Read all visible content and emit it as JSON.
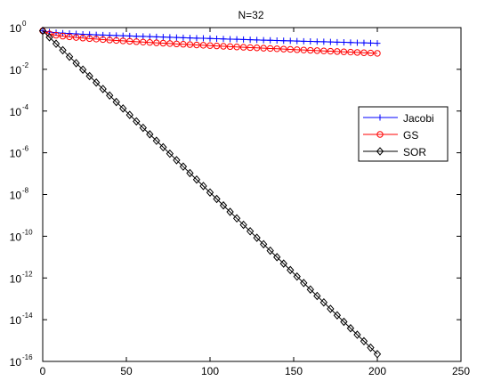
{
  "chart_data": {
    "type": "line",
    "title": "N=32",
    "xlabel": "",
    "ylabel": "",
    "xlim": [
      0,
      250
    ],
    "ylim": [
      1e-16,
      1
    ],
    "yscale": "log",
    "grid": false,
    "legend_position": "right",
    "x_ticks": [
      "0",
      "50",
      "100",
      "150",
      "200",
      "250"
    ],
    "y_ticks": [
      {
        "base": "10",
        "exp": "0",
        "value": 1
      },
      {
        "base": "10",
        "exp": "-2",
        "value": 0.01
      },
      {
        "base": "10",
        "exp": "-4",
        "value": 0.0001
      },
      {
        "base": "10",
        "exp": "-6",
        "value": 1e-06
      },
      {
        "base": "10",
        "exp": "-8",
        "value": 1e-08
      },
      {
        "base": "10",
        "exp": "-10",
        "value": 1e-10
      },
      {
        "base": "10",
        "exp": "-12",
        "value": 1e-12
      },
      {
        "base": "10",
        "exp": "-14",
        "value": 1e-14
      },
      {
        "base": "10",
        "exp": "-16",
        "value": 1e-16
      }
    ],
    "x": [
      0,
      4,
      8,
      12,
      16,
      20,
      24,
      28,
      32,
      36,
      40,
      44,
      48,
      52,
      56,
      60,
      64,
      68,
      72,
      76,
      80,
      84,
      88,
      92,
      96,
      100,
      104,
      108,
      112,
      116,
      120,
      124,
      128,
      132,
      136,
      140,
      144,
      148,
      152,
      156,
      160,
      164,
      168,
      172,
      176,
      180,
      184,
      188,
      192,
      196,
      200
    ],
    "series": [
      {
        "name": "Jacobi",
        "color": "#0000ff",
        "marker": "plus",
        "values": [
          0.7,
          0.61,
          0.57,
          0.54,
          0.52,
          0.5,
          0.48,
          0.466,
          0.452,
          0.44,
          0.428,
          0.417,
          0.406,
          0.396,
          0.386,
          0.377,
          0.368,
          0.359,
          0.351,
          0.343,
          0.335,
          0.327,
          0.32,
          0.313,
          0.306,
          0.299,
          0.292,
          0.286,
          0.28,
          0.274,
          0.268,
          0.262,
          0.257,
          0.251,
          0.246,
          0.241,
          0.236,
          0.231,
          0.226,
          0.222,
          0.217,
          0.213,
          0.209,
          0.205,
          0.201,
          0.197,
          0.193,
          0.189,
          0.185,
          0.182,
          0.178
        ]
      },
      {
        "name": "GS",
        "color": "#ff0000",
        "marker": "circle",
        "values": [
          0.7,
          0.5,
          0.43,
          0.39,
          0.36,
          0.335,
          0.315,
          0.297,
          0.281,
          0.267,
          0.254,
          0.242,
          0.231,
          0.221,
          0.211,
          0.202,
          0.194,
          0.186,
          0.179,
          0.172,
          0.165,
          0.159,
          0.153,
          0.147,
          0.142,
          0.137,
          0.132,
          0.127,
          0.123,
          0.118,
          0.114,
          0.11,
          0.107,
          0.103,
          0.1,
          0.0965,
          0.0933,
          0.0902,
          0.0872,
          0.0843,
          0.0815,
          0.0788,
          0.0762,
          0.0737,
          0.0713,
          0.069,
          0.0667,
          0.0645,
          0.0624,
          0.0604,
          0.0584
        ]
      },
      {
        "name": "SOR",
        "color": "#000000",
        "marker": "diamond",
        "values": [
          0.7,
          0.343,
          0.168,
          0.0822,
          0.0403,
          0.0197,
          0.00966,
          0.00473,
          0.00232,
          0.00114,
          0.000556,
          0.000272,
          0.000133,
          6.53e-05,
          3.2e-05,
          1.57e-05,
          7.68e-06,
          3.76e-06,
          1.84e-06,
          9.03e-07,
          4.42e-07,
          2.17e-07,
          1.06e-07,
          5.2e-08,
          2.55e-08,
          1.25e-08,
          6.12e-09,
          3e-09,
          1.47e-09,
          7.19e-10,
          3.52e-10,
          1.73e-10,
          8.45e-11,
          4.14e-11,
          2.03e-11,
          9.94e-12,
          4.87e-12,
          2.39e-12,
          1.17e-12,
          5.73e-13,
          2.8e-13,
          1.37e-13,
          6.74e-14,
          3.3e-14,
          1.62e-14,
          7.92e-15,
          3.88e-15,
          1.9e-15,
          9.31e-16,
          4.56e-16,
          2.24e-16
        ]
      }
    ]
  }
}
